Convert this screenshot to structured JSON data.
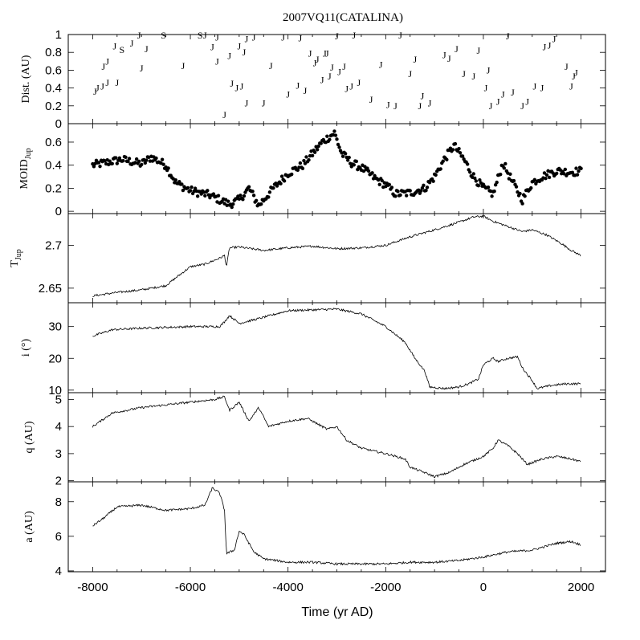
{
  "chart_data": {
    "title": "2007VQ11(CATALINA)",
    "xlabel": "Time (yr AD)",
    "xlim": [
      -8500,
      2500
    ],
    "xticks": [
      -8000,
      -6000,
      -4000,
      -2000,
      0,
      2000
    ],
    "xtick_labels": [
      "-8000",
      "-6000",
      "-4000",
      "-2000",
      "0",
      "2000"
    ],
    "panels": [
      {
        "id": "dist",
        "type": "scatter",
        "ylabel": "Dist. (AU)",
        "ylim": [
          0,
          1
        ],
        "yticks": [
          0,
          0.2,
          0.4,
          0.6,
          0.8,
          1
        ],
        "ytick_labels": [
          "0",
          "0.2",
          "0.4",
          "0.6",
          "0.8",
          "1"
        ],
        "markers": [
          [
            "J",
            -7950,
            0.36
          ],
          [
            "J",
            -7900,
            0.4
          ],
          [
            "J",
            -7800,
            0.42
          ],
          [
            "J",
            -7700,
            0.46
          ],
          [
            "J",
            -7780,
            0.64
          ],
          [
            "J",
            -7700,
            0.7
          ],
          [
            "J",
            -7550,
            0.87
          ],
          [
            "S",
            -7400,
            0.83
          ],
          [
            "J",
            -7500,
            0.46
          ],
          [
            "J",
            -7200,
            0.9
          ],
          [
            "J",
            -7050,
            0.99
          ],
          [
            "J",
            -7000,
            0.62
          ],
          [
            "J",
            -6900,
            0.84
          ],
          [
            "S",
            -6550,
            0.99
          ],
          [
            "J",
            -6150,
            0.65
          ],
          [
            "S",
            -5800,
            0.99
          ],
          [
            "J",
            -5700,
            0.99
          ],
          [
            "J",
            -5550,
            0.86
          ],
          [
            "J",
            -5450,
            0.97
          ],
          [
            "J",
            -5450,
            0.7
          ],
          [
            "J",
            -5300,
            0.1
          ],
          [
            "J",
            -5200,
            0.76
          ],
          [
            "J",
            -5150,
            0.45
          ],
          [
            "J",
            -5050,
            0.4
          ],
          [
            "J",
            -5000,
            0.87
          ],
          [
            "J",
            -4950,
            0.42
          ],
          [
            "J",
            -4900,
            0.8
          ],
          [
            "J",
            -4850,
            0.95
          ],
          [
            "J",
            -4850,
            0.23
          ],
          [
            "J",
            -4700,
            0.97
          ],
          [
            "J",
            -4500,
            0.23
          ],
          [
            "J",
            -4350,
            0.65
          ],
          [
            "J",
            -4100,
            0.97
          ],
          [
            "J",
            -4000,
            0.33
          ],
          [
            "J",
            -3800,
            0.43
          ],
          [
            "J",
            -3750,
            0.96
          ],
          [
            "J",
            -3650,
            0.37
          ],
          [
            "J",
            -3550,
            0.79
          ],
          [
            "J",
            -3450,
            0.68
          ],
          [
            "J",
            -3400,
            0.72
          ],
          [
            "J",
            -3300,
            0.49
          ],
          [
            "J",
            -3250,
            0.79
          ],
          [
            "J",
            -3200,
            0.79
          ],
          [
            "J",
            -3150,
            0.53
          ],
          [
            "J",
            -3100,
            0.63
          ],
          [
            "J",
            -3000,
            0.98
          ],
          [
            "J",
            -2950,
            0.58
          ],
          [
            "J",
            -2850,
            0.64
          ],
          [
            "J",
            -2800,
            0.39
          ],
          [
            "J",
            -2700,
            0.42
          ],
          [
            "J",
            -2650,
            0.99
          ],
          [
            "J",
            -2550,
            0.46
          ],
          [
            "J",
            -2300,
            0.27
          ],
          [
            "J",
            -2100,
            0.66
          ],
          [
            "J",
            -1950,
            0.21
          ],
          [
            "J",
            -1800,
            0.2
          ],
          [
            "J",
            -1700,
            0.99
          ],
          [
            "J",
            -1500,
            0.56
          ],
          [
            "J",
            -1400,
            0.72
          ],
          [
            "J",
            -1300,
            0.2
          ],
          [
            "J",
            -1250,
            0.31
          ],
          [
            "J",
            -1100,
            0.23
          ],
          [
            "J",
            -800,
            0.77
          ],
          [
            "J",
            -700,
            0.73
          ],
          [
            "J",
            -550,
            0.84
          ],
          [
            "J",
            -400,
            0.56
          ],
          [
            "J",
            -200,
            0.53
          ],
          [
            "J",
            -100,
            0.82
          ],
          [
            "J",
            50,
            0.4
          ],
          [
            "J",
            100,
            0.6
          ],
          [
            "J",
            150,
            0.2
          ],
          [
            "J",
            300,
            0.25
          ],
          [
            "J",
            400,
            0.33
          ],
          [
            "J",
            500,
            0.98
          ],
          [
            "J",
            600,
            0.35
          ],
          [
            "J",
            800,
            0.2
          ],
          [
            "J",
            900,
            0.25
          ],
          [
            "J",
            1050,
            0.42
          ],
          [
            "J",
            1200,
            0.4
          ],
          [
            "J",
            1250,
            0.86
          ],
          [
            "J",
            1350,
            0.88
          ],
          [
            "J",
            1450,
            0.95
          ],
          [
            "J",
            1700,
            0.64
          ],
          [
            "J",
            1800,
            0.42
          ],
          [
            "J",
            1850,
            0.53
          ],
          [
            "J",
            1900,
            0.57
          ]
        ]
      },
      {
        "id": "moid",
        "type": "scatter",
        "ylabel": "MOID",
        "ylabel_sub": "Jup",
        "ylim": [
          -0.02,
          0.76
        ],
        "yticks": [
          0,
          0.2,
          0.4,
          0.6
        ],
        "ytick_labels": [
          "0",
          "0.2",
          "0.4",
          "0.6"
        ],
        "profile": [
          [
            -8000,
            0.4
          ],
          [
            -7400,
            0.45
          ],
          [
            -7000,
            0.41
          ],
          [
            -6800,
            0.47
          ],
          [
            -6500,
            0.4
          ],
          [
            -6300,
            0.25
          ],
          [
            -6000,
            0.18
          ],
          [
            -5600,
            0.14
          ],
          [
            -5200,
            0.06
          ],
          [
            -5000,
            0.1
          ],
          [
            -4800,
            0.2
          ],
          [
            -4600,
            0.05
          ],
          [
            -4300,
            0.2
          ],
          [
            -4000,
            0.33
          ],
          [
            -3700,
            0.4
          ],
          [
            -3500,
            0.5
          ],
          [
            -3300,
            0.6
          ],
          [
            -3050,
            0.68
          ],
          [
            -2900,
            0.5
          ],
          [
            -2700,
            0.42
          ],
          [
            -2500,
            0.38
          ],
          [
            -2200,
            0.28
          ],
          [
            -2000,
            0.23
          ],
          [
            -1800,
            0.15
          ],
          [
            -1500,
            0.16
          ],
          [
            -1200,
            0.2
          ],
          [
            -1000,
            0.3
          ],
          [
            -800,
            0.45
          ],
          [
            -600,
            0.57
          ],
          [
            -400,
            0.45
          ],
          [
            -200,
            0.3
          ],
          [
            0,
            0.2
          ],
          [
            200,
            0.15
          ],
          [
            400,
            0.42
          ],
          [
            600,
            0.25
          ],
          [
            800,
            0.1
          ],
          [
            1000,
            0.25
          ],
          [
            1200,
            0.3
          ],
          [
            1500,
            0.35
          ],
          [
            1800,
            0.34
          ],
          [
            2000,
            0.35
          ]
        ]
      },
      {
        "id": "tjup",
        "type": "line",
        "ylabel": "T",
        "ylabel_sub": "Jup",
        "ylim": [
          2.633,
          2.737
        ],
        "yticks": [
          2.65,
          2.7
        ],
        "ytick_labels": [
          "2.65",
          "2.7"
        ],
        "points": [
          [
            -8000,
            2.641
          ],
          [
            -7500,
            2.645
          ],
          [
            -7000,
            2.648
          ],
          [
            -6500,
            2.653
          ],
          [
            -6300,
            2.662
          ],
          [
            -6000,
            2.675
          ],
          [
            -5700,
            2.678
          ],
          [
            -5400,
            2.685
          ],
          [
            -5300,
            2.688
          ],
          [
            -5260,
            2.675
          ],
          [
            -5200,
            2.697
          ],
          [
            -5000,
            2.698
          ],
          [
            -4500,
            2.694
          ],
          [
            -4000,
            2.697
          ],
          [
            -3500,
            2.699
          ],
          [
            -3000,
            2.696
          ],
          [
            -2500,
            2.697
          ],
          [
            -2000,
            2.7
          ],
          [
            -1500,
            2.71
          ],
          [
            -1000,
            2.718
          ],
          [
            -500,
            2.727
          ],
          [
            -200,
            2.733
          ],
          [
            0,
            2.734
          ],
          [
            200,
            2.728
          ],
          [
            500,
            2.722
          ],
          [
            800,
            2.716
          ],
          [
            1000,
            2.718
          ],
          [
            1300,
            2.712
          ],
          [
            1600,
            2.702
          ],
          [
            1800,
            2.694
          ],
          [
            2000,
            2.688
          ]
        ]
      },
      {
        "id": "incl",
        "type": "line",
        "ylabel": "i (°)",
        "ylim": [
          9.2,
          37.5
        ],
        "yticks": [
          10,
          20,
          30
        ],
        "ytick_labels": [
          "10",
          "20",
          "30"
        ],
        "points": [
          [
            -8000,
            27
          ],
          [
            -7600,
            29
          ],
          [
            -7000,
            29.5
          ],
          [
            -6000,
            30
          ],
          [
            -5400,
            30
          ],
          [
            -5300,
            31.5
          ],
          [
            -5200,
            33.5
          ],
          [
            -5000,
            31
          ],
          [
            -4600,
            32.5
          ],
          [
            -4000,
            35
          ],
          [
            -3000,
            35.5
          ],
          [
            -2500,
            34
          ],
          [
            -2000,
            30
          ],
          [
            -1600,
            25
          ],
          [
            -1400,
            20
          ],
          [
            -1200,
            16
          ],
          [
            -1100,
            11
          ],
          [
            -800,
            10.5
          ],
          [
            -500,
            11
          ],
          [
            -300,
            12
          ],
          [
            -100,
            13.5
          ],
          [
            0,
            18
          ],
          [
            200,
            20
          ],
          [
            300,
            19
          ],
          [
            500,
            20
          ],
          [
            700,
            20.5
          ],
          [
            800,
            17
          ],
          [
            900,
            15
          ],
          [
            1000,
            13
          ],
          [
            1100,
            10.5
          ],
          [
            1400,
            11.5
          ],
          [
            1700,
            12
          ],
          [
            2000,
            12
          ]
        ]
      },
      {
        "id": "q",
        "type": "line",
        "ylabel": "q (AU)",
        "ylim": [
          1.96,
          5.25
        ],
        "yticks": [
          2,
          3,
          4,
          5
        ],
        "ytick_labels": [
          "2",
          "3",
          "4",
          "5"
        ],
        "points": [
          [
            -8000,
            4.0
          ],
          [
            -7600,
            4.5
          ],
          [
            -7000,
            4.7
          ],
          [
            -6500,
            4.8
          ],
          [
            -6000,
            4.9
          ],
          [
            -5500,
            5.0
          ],
          [
            -5300,
            5.1
          ],
          [
            -5200,
            4.6
          ],
          [
            -5000,
            4.9
          ],
          [
            -4800,
            4.2
          ],
          [
            -4600,
            4.7
          ],
          [
            -4400,
            4.0
          ],
          [
            -4000,
            4.2
          ],
          [
            -3600,
            4.3
          ],
          [
            -3200,
            3.9
          ],
          [
            -3000,
            4.0
          ],
          [
            -2800,
            3.5
          ],
          [
            -2500,
            3.2
          ],
          [
            -2000,
            3.0
          ],
          [
            -1600,
            2.8
          ],
          [
            -1500,
            2.5
          ],
          [
            -1200,
            2.3
          ],
          [
            -1000,
            2.15
          ],
          [
            -700,
            2.3
          ],
          [
            -400,
            2.6
          ],
          [
            0,
            2.9
          ],
          [
            200,
            3.2
          ],
          [
            300,
            3.5
          ],
          [
            500,
            3.3
          ],
          [
            700,
            3.0
          ],
          [
            900,
            2.6
          ],
          [
            1200,
            2.8
          ],
          [
            1500,
            2.9
          ],
          [
            1800,
            2.8
          ],
          [
            2000,
            2.7
          ]
        ]
      },
      {
        "id": "a",
        "type": "line",
        "ylabel": "a (AU)",
        "ylim": [
          3.95,
          9.15
        ],
        "yticks": [
          4,
          6,
          8
        ],
        "ytick_labels": [
          "4",
          "6",
          "8"
        ],
        "points": [
          [
            -8000,
            6.6
          ],
          [
            -7800,
            7.0
          ],
          [
            -7500,
            7.7
          ],
          [
            -7000,
            7.8
          ],
          [
            -6500,
            7.5
          ],
          [
            -6000,
            7.6
          ],
          [
            -5700,
            7.8
          ],
          [
            -5550,
            8.8
          ],
          [
            -5400,
            8.5
          ],
          [
            -5300,
            7.5
          ],
          [
            -5260,
            5.0
          ],
          [
            -5100,
            5.2
          ],
          [
            -5000,
            6.3
          ],
          [
            -4900,
            6.1
          ],
          [
            -4700,
            5.1
          ],
          [
            -4500,
            4.7
          ],
          [
            -4000,
            4.5
          ],
          [
            -3500,
            4.5
          ],
          [
            -3000,
            4.4
          ],
          [
            -2500,
            4.4
          ],
          [
            -2000,
            4.4
          ],
          [
            -1500,
            4.5
          ],
          [
            -1000,
            4.5
          ],
          [
            -500,
            4.6
          ],
          [
            0,
            4.8
          ],
          [
            500,
            5.1
          ],
          [
            1000,
            5.2
          ],
          [
            1500,
            5.6
          ],
          [
            1800,
            5.7
          ],
          [
            2000,
            5.5
          ]
        ]
      }
    ]
  }
}
